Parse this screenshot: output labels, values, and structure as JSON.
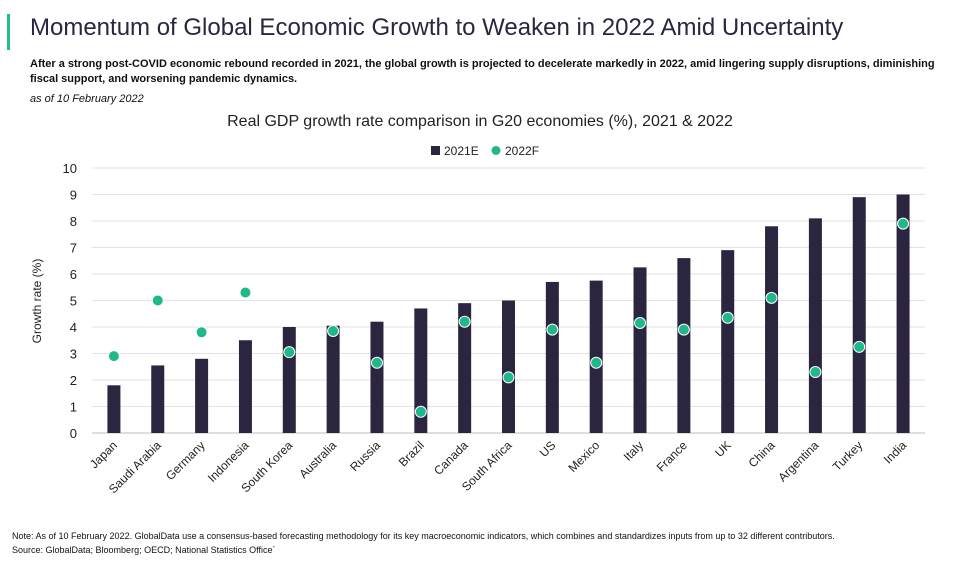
{
  "header": {
    "title": "Momentum of Global Economic Growth to Weaken in 2022 Amid Uncertainty",
    "subtitle": "After a strong post-COVID economic rebound recorded in 2021, the global growth is projected to decelerate markedly in 2022, amid lingering supply disruptions, diminishing fiscal support, and worsening pandemic dynamics.",
    "as_of": "as of 10 February 2022"
  },
  "footer": {
    "note": "Note: As of 10 February 2022. GlobalData use a consensus-based forecasting methodology for its key macroeconomic indicators, which combines and standardizes inputs from up to 32 different contributors.",
    "source": "Source: GlobalData; Bloomberg; OECD; National Statistics Office`"
  },
  "colors": {
    "accent": "#1fbf8f",
    "bar": "#2b2540",
    "dot": "#1fb88a"
  },
  "chart_data": {
    "type": "bar",
    "title": "Real GDP growth rate comparison in G20 economies (%), 2021 & 2022",
    "ylabel": "Growth rate (%)",
    "xlabel": "",
    "ylim": [
      0,
      10
    ],
    "yticks": [
      0,
      1,
      2,
      3,
      4,
      5,
      6,
      7,
      8,
      9,
      10
    ],
    "grid": true,
    "legend_position": "top-center",
    "categories": [
      "Japan",
      "Saudi Arabia",
      "Germany",
      "Indonesia",
      "South Korea",
      "Australia",
      "Russia",
      "Brazil",
      "Canada",
      "South Africa",
      "US",
      "Mexico",
      "Italy",
      "France",
      "UK",
      "China",
      "Argentina",
      "Turkey",
      "India"
    ],
    "series": [
      {
        "name": "2021E",
        "type": "bar",
        "values": [
          1.8,
          2.55,
          2.8,
          3.5,
          4.0,
          4.05,
          4.2,
          4.7,
          4.9,
          5.0,
          5.7,
          5.75,
          6.25,
          6.6,
          6.9,
          7.8,
          8.1,
          8.9,
          9.0
        ]
      },
      {
        "name": "2022F",
        "type": "scatter",
        "values": [
          2.9,
          5.0,
          3.8,
          5.3,
          3.05,
          3.85,
          2.65,
          0.8,
          4.2,
          2.1,
          3.9,
          2.65,
          4.15,
          3.9,
          4.35,
          5.1,
          2.3,
          3.25,
          7.9
        ]
      }
    ]
  }
}
